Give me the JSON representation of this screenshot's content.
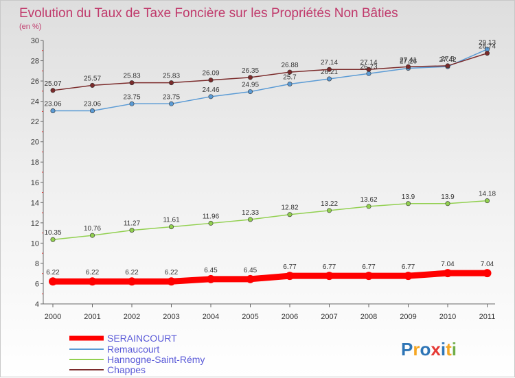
{
  "chart_data": {
    "type": "line",
    "title": "Evolution du Taux de Taxe Foncière sur les Propriétés Non Bâties",
    "unit_label": "(en %)",
    "xlabel": "",
    "ylabel": "",
    "x": [
      "2000",
      "2001",
      "2002",
      "2003",
      "2004",
      "2005",
      "2006",
      "2007",
      "2008",
      "2009",
      "2010",
      "2011"
    ],
    "yticks": [
      4,
      6,
      8,
      10,
      12,
      14,
      16,
      18,
      20,
      22,
      24,
      26,
      28,
      30
    ],
    "ylim": [
      4,
      30
    ],
    "grid": false,
    "legend_position": "bottom-left",
    "series": [
      {
        "name": "SERAINCOURT",
        "color": "#ff0000",
        "values": [
          6.22,
          6.22,
          6.22,
          6.22,
          6.45,
          6.45,
          6.77,
          6.77,
          6.77,
          6.77,
          7.04,
          7.04
        ],
        "labels": [
          "6.22",
          "6.22",
          "6.22",
          "6.22",
          "6.45",
          "6.45",
          "6.77",
          "6.77",
          "6.77",
          "6.77",
          "7.04",
          "7.04"
        ]
      },
      {
        "name": "Remaucourt",
        "color": "#5b9bd5",
        "values": [
          23.06,
          23.06,
          23.75,
          23.75,
          24.46,
          24.95,
          25.7,
          26.21,
          26.73,
          27.26,
          27.42,
          29.13
        ],
        "labels": [
          "23.06",
          "23.06",
          "23.75",
          "23.75",
          "24.46",
          "24.95",
          "25.7",
          "26.21",
          "26.73",
          "27.26",
          "27.42",
          "29.13"
        ]
      },
      {
        "name": "Hannogne-Saint-Rémy",
        "color": "#92d050",
        "values": [
          10.35,
          10.76,
          11.27,
          11.61,
          11.96,
          12.33,
          12.82,
          13.22,
          13.62,
          13.9,
          13.9,
          14.18
        ],
        "labels": [
          "10.35",
          "10.76",
          "11.27",
          "11.61",
          "11.96",
          "12.33",
          "12.82",
          "13.22",
          "13.62",
          "13.9",
          "13.9",
          "14.18"
        ]
      },
      {
        "name": "Chappes",
        "color": "#7b2b2b",
        "values": [
          25.07,
          25.57,
          25.83,
          25.83,
          26.09,
          26.35,
          26.88,
          27.14,
          27.14,
          27.41,
          27.5,
          28.74
        ],
        "labels": [
          "25.07",
          "25.57",
          "25.83",
          "25.83",
          "26.09",
          "26.35",
          "26.88",
          "27.14",
          "27.14",
          "27.41",
          "27.5",
          "28.74"
        ]
      }
    ]
  },
  "logo": {
    "text": "Proxiti",
    "letter_colors": [
      "#2e75b6",
      "#f5a623",
      "#2e75b6",
      "#e53935",
      "#2e75b6",
      "#f5a623",
      "#70ad47"
    ]
  }
}
